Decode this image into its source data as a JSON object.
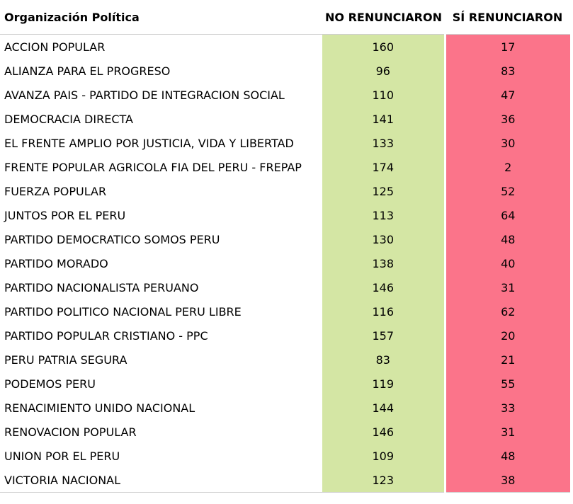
{
  "chart_data": {
    "type": "table",
    "columns": [
      "Organización Política",
      "NO RENUNCIARON",
      "SÍ RENUNCIARON"
    ],
    "colors": {
      "no_renunciaron": "#d4e6a4",
      "si_renunciaron": "#fb748a"
    },
    "rows": [
      {
        "org": "ACCION POPULAR",
        "no": "160",
        "si": "17"
      },
      {
        "org": "ALIANZA PARA EL PROGRESO",
        "no": "96",
        "si": "83"
      },
      {
        "org": "AVANZA PAIS - PARTIDO DE INTEGRACION SOCIAL",
        "no": "110",
        "si": "47"
      },
      {
        "org": "DEMOCRACIA DIRECTA",
        "no": "141",
        "si": "36"
      },
      {
        "org": "EL FRENTE AMPLIO POR JUSTICIA, VIDA Y LIBERTAD",
        "no": "133",
        "si": "30"
      },
      {
        "org": "FRENTE POPULAR AGRICOLA FIA DEL PERU - FREPAP",
        "no": "174",
        "si": "2"
      },
      {
        "org": "FUERZA POPULAR",
        "no": "125",
        "si": "52"
      },
      {
        "org": "JUNTOS POR EL PERU",
        "no": "113",
        "si": "64"
      },
      {
        "org": "PARTIDO DEMOCRATICO SOMOS PERU",
        "no": "130",
        "si": "48"
      },
      {
        "org": "PARTIDO MORADO",
        "no": "138",
        "si": "40"
      },
      {
        "org": "PARTIDO NACIONALISTA PERUANO",
        "no": "146",
        "si": "31"
      },
      {
        "org": "PARTIDO POLITICO NACIONAL PERU LIBRE",
        "no": "116",
        "si": "62"
      },
      {
        "org": "PARTIDO POPULAR CRISTIANO - PPC",
        "no": "157",
        "si": "20"
      },
      {
        "org": "PERU PATRIA SEGURA",
        "no": "83",
        "si": "21"
      },
      {
        "org": "PODEMOS PERU",
        "no": "119",
        "si": "55"
      },
      {
        "org": "RENACIMIENTO UNIDO NACIONAL",
        "no": "144",
        "si": "33"
      },
      {
        "org": "RENOVACION POPULAR",
        "no": "146",
        "si": "31"
      },
      {
        "org": "UNION POR EL PERU",
        "no": "109",
        "si": "48"
      },
      {
        "org": "VICTORIA NACIONAL",
        "no": "123",
        "si": "38"
      }
    ]
  }
}
